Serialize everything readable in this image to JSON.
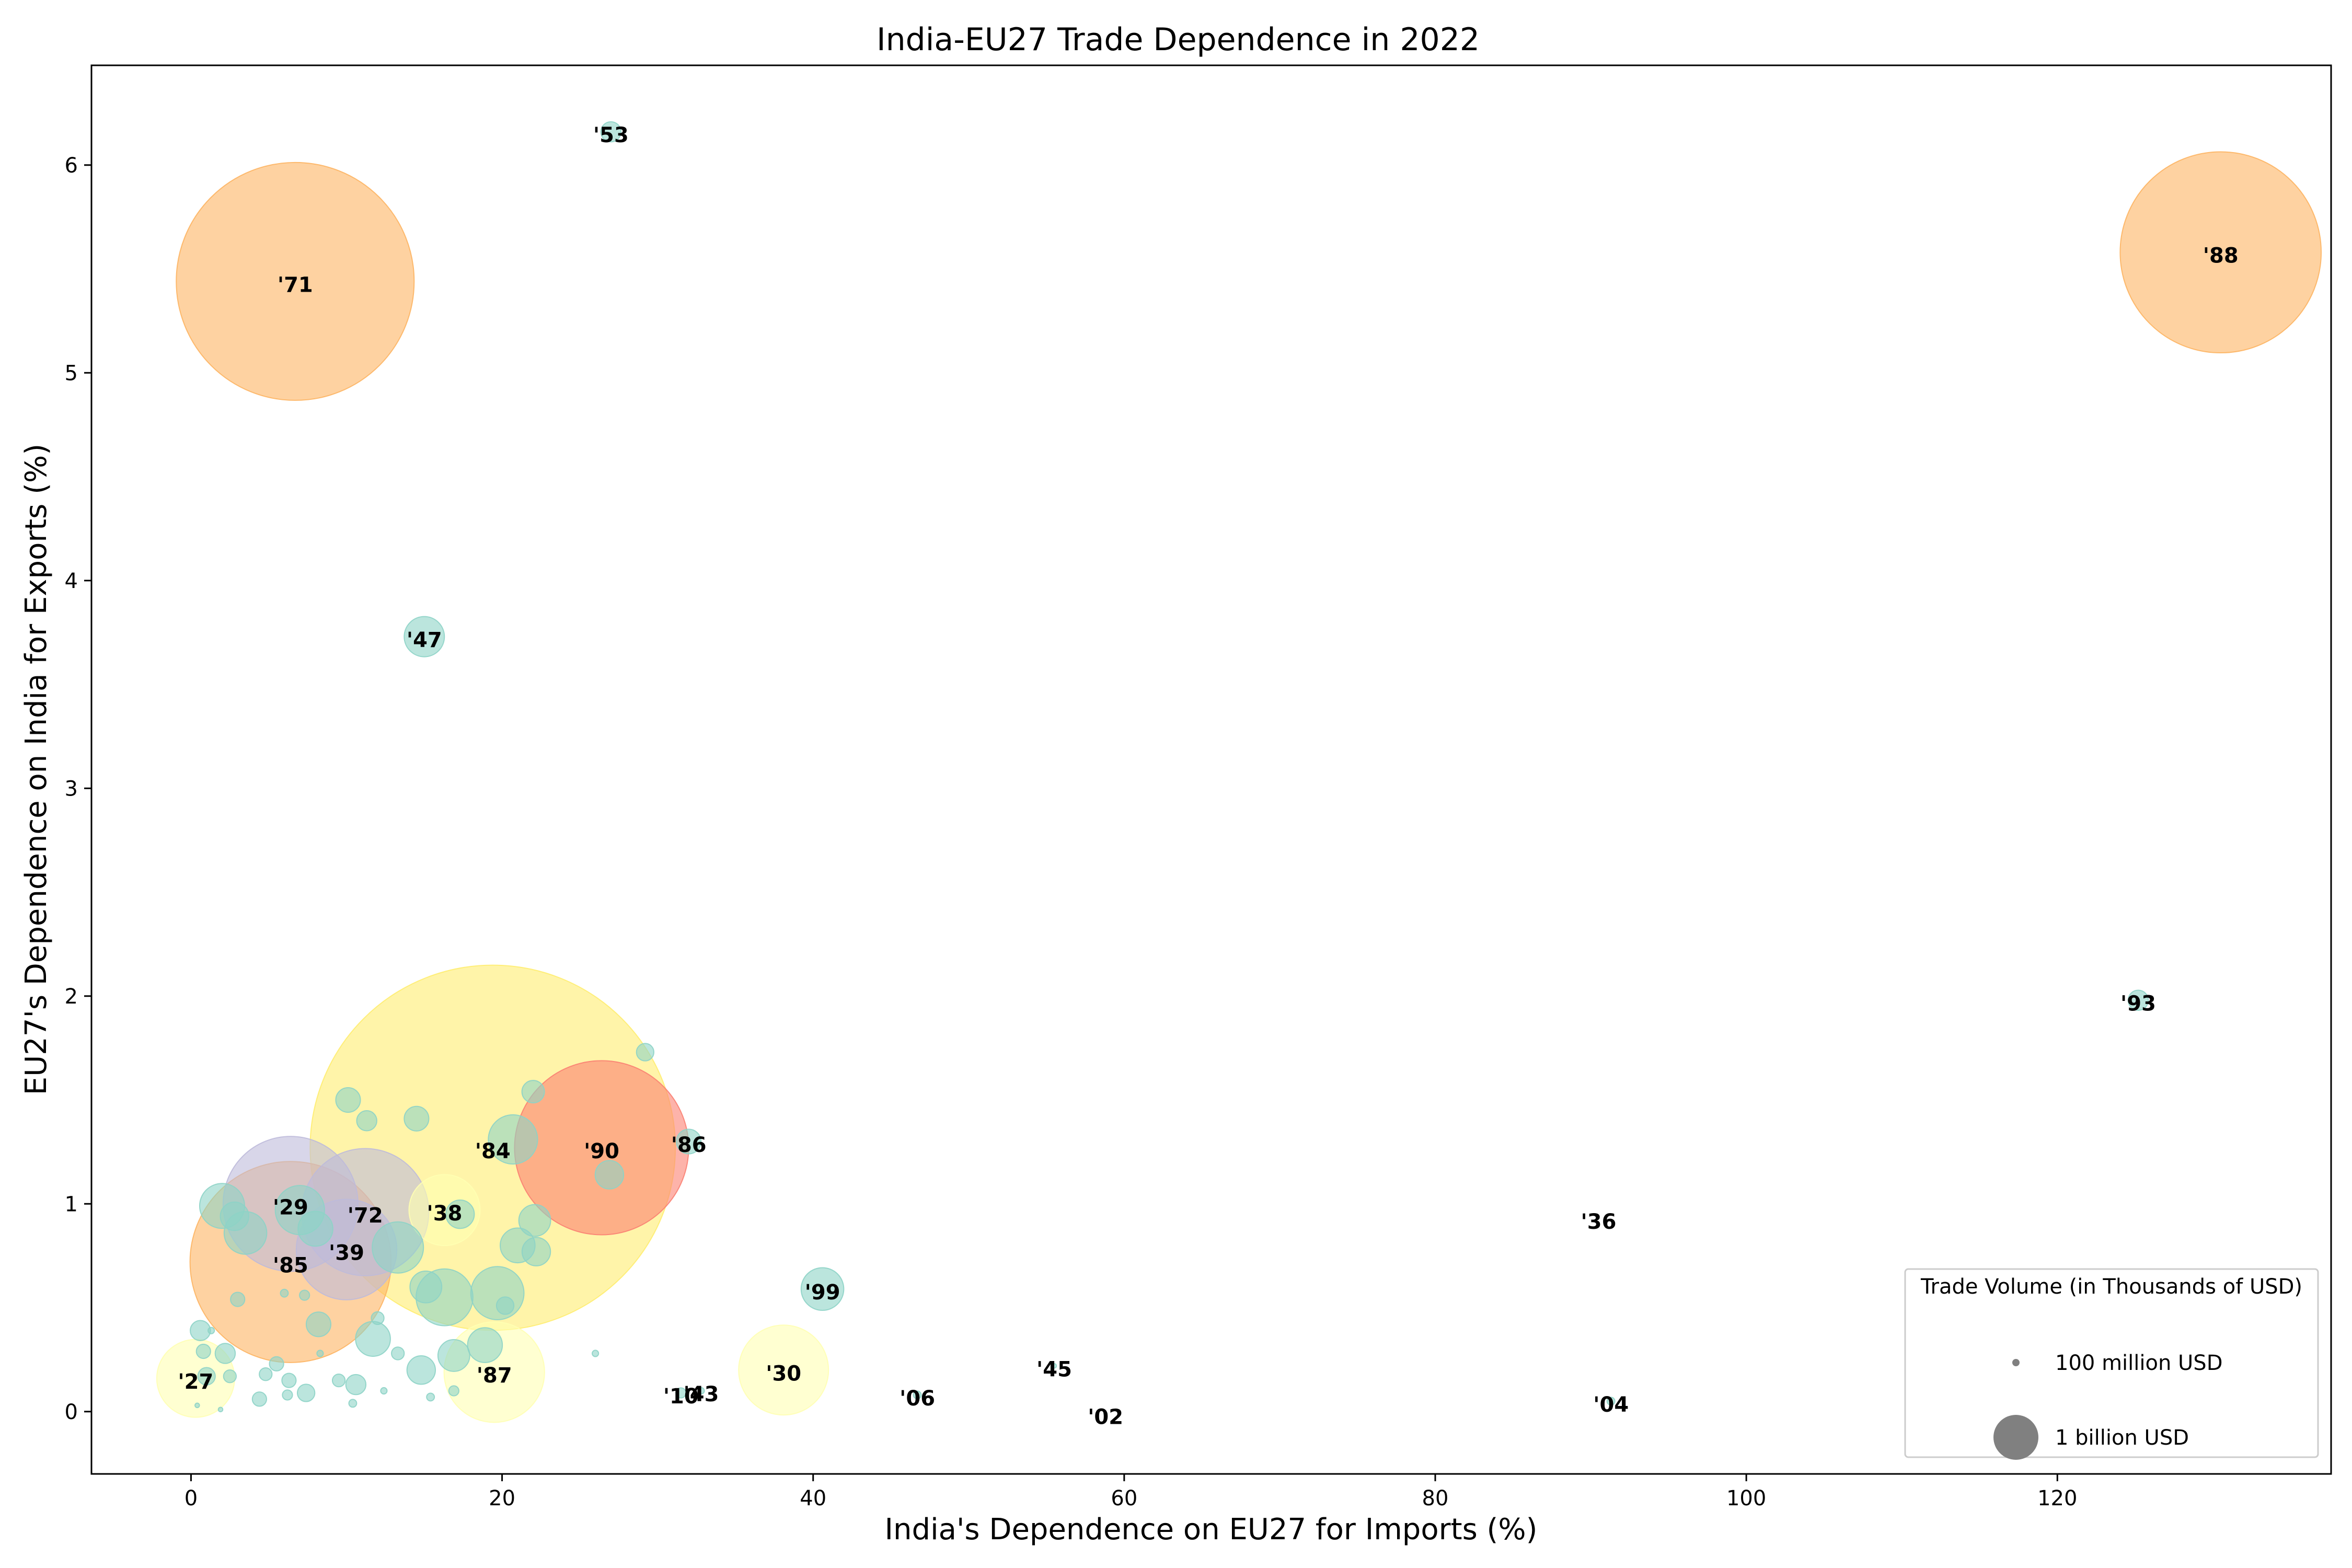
{
  "chart_data": {
    "type": "scatter",
    "title": "India-EU27 Trade Dependence in 2022",
    "xlabel": "India's Dependence on EU27 for Imports (%)",
    "ylabel": "EU27's Dependence on India for Exports (%)",
    "xlim": [
      -6.4,
      137.6
    ],
    "ylim": [
      -0.3,
      6.48
    ],
    "xticks": [
      0,
      20,
      40,
      60,
      80,
      100,
      120
    ],
    "yticks": [
      0,
      1,
      2,
      3,
      4,
      5,
      6
    ],
    "grid": false,
    "legend": {
      "title": "Trade Volume (in Thousands of USD)",
      "placement": "bottom-right",
      "entries": [
        {
          "label": "100 million USD",
          "value_billion_usd": 0.1
        },
        {
          "label": "1 billion USD",
          "value_billion_usd": 1.0
        }
      ]
    },
    "colors": {
      "teal": "#8dd3c7",
      "yellow": "#ffed6f",
      "lightyellow": "#ffffb3",
      "lavender": "#bebada",
      "orange": "#fdb462",
      "salmon": "#fb8072"
    },
    "labeled_points": [
      {
        "label": "'53",
        "x": 27.0,
        "y": 6.16,
        "size_billion_usd": 0.2,
        "color": "teal"
      },
      {
        "label": "'71",
        "x": 6.7,
        "y": 5.44,
        "size_billion_usd": 28,
        "color": "orange"
      },
      {
        "label": "'88",
        "x": 130.5,
        "y": 5.58,
        "size_billion_usd": 20,
        "color": "orange"
      },
      {
        "label": "'47",
        "x": 15.0,
        "y": 3.73,
        "size_billion_usd": 0.8,
        "color": "teal"
      },
      {
        "label": "'93",
        "x": 125.2,
        "y": 1.98,
        "size_billion_usd": 0.2,
        "color": "teal"
      },
      {
        "label": "'84",
        "x": 19.4,
        "y": 1.27,
        "size_billion_usd": 66,
        "color": "yellow"
      },
      {
        "label": "'90",
        "x": 26.4,
        "y": 1.27,
        "size_billion_usd": 15,
        "color": "salmon"
      },
      {
        "label": "'86",
        "x": 32.0,
        "y": 1.3,
        "size_billion_usd": 0.3,
        "color": "teal"
      },
      {
        "label": "'29",
        "x": 6.4,
        "y": 1.0,
        "size_billion_usd": 9,
        "color": "lavender"
      },
      {
        "label": "'72",
        "x": 11.2,
        "y": 0.96,
        "size_billion_usd": 8,
        "color": "lavender"
      },
      {
        "label": "'38",
        "x": 16.3,
        "y": 0.97,
        "size_billion_usd": 2.5,
        "color": "lightyellow"
      },
      {
        "label": "'39",
        "x": 10.0,
        "y": 0.78,
        "size_billion_usd": 5,
        "color": "lavender"
      },
      {
        "label": "'85",
        "x": 6.4,
        "y": 0.72,
        "size_billion_usd": 20,
        "color": "orange"
      },
      {
        "label": "'36",
        "x": 90.5,
        "y": 0.93,
        "size_billion_usd": 0,
        "color": "teal"
      },
      {
        "label": "'99",
        "x": 40.6,
        "y": 0.59,
        "size_billion_usd": 0.9,
        "color": "teal"
      },
      {
        "label": "'87",
        "x": 19.5,
        "y": 0.19,
        "size_billion_usd": 5,
        "color": "lightyellow"
      },
      {
        "label": "'30",
        "x": 38.1,
        "y": 0.2,
        "size_billion_usd": 4,
        "color": "lightyellow"
      },
      {
        "label": "'27",
        "x": 0.3,
        "y": 0.16,
        "size_billion_usd": 3,
        "color": "lightyellow"
      },
      {
        "label": "'45",
        "x": 55.5,
        "y": 0.22,
        "size_billion_usd": 0.01,
        "color": "teal"
      },
      {
        "label": "'43",
        "x": 32.8,
        "y": 0.1,
        "size_billion_usd": 0.02,
        "color": "teal"
      },
      {
        "label": "'10",
        "x": 31.5,
        "y": 0.09,
        "size_billion_usd": 0.05,
        "color": "teal"
      },
      {
        "label": "'06",
        "x": 46.7,
        "y": 0.08,
        "size_billion_usd": 0.03,
        "color": "teal"
      },
      {
        "label": "'02",
        "x": 58.8,
        "y": -0.01,
        "size_billion_usd": 0.005,
        "color": "teal"
      },
      {
        "label": "'04",
        "x": 91.3,
        "y": 0.05,
        "size_billion_usd": 0.03,
        "color": "teal"
      }
    ],
    "unlabeled_points": [
      {
        "x": 2.0,
        "y": 0.99,
        "size_billion_usd": 1.0
      },
      {
        "x": 3.5,
        "y": 0.86,
        "size_billion_usd": 0.9
      },
      {
        "x": 2.8,
        "y": 0.94,
        "size_billion_usd": 0.4
      },
      {
        "x": 7.0,
        "y": 0.97,
        "size_billion_usd": 1.2
      },
      {
        "x": 8.0,
        "y": 0.88,
        "size_billion_usd": 0.6
      },
      {
        "x": 13.3,
        "y": 0.79,
        "size_billion_usd": 1.3
      },
      {
        "x": 16.3,
        "y": 0.55,
        "size_billion_usd": 1.6
      },
      {
        "x": 19.7,
        "y": 0.57,
        "size_billion_usd": 1.4
      },
      {
        "x": 15.1,
        "y": 0.6,
        "size_billion_usd": 0.5
      },
      {
        "x": 11.7,
        "y": 0.35,
        "size_billion_usd": 0.6
      },
      {
        "x": 18.9,
        "y": 0.32,
        "size_billion_usd": 0.6
      },
      {
        "x": 16.9,
        "y": 0.27,
        "size_billion_usd": 0.5
      },
      {
        "x": 14.8,
        "y": 0.2,
        "size_billion_usd": 0.4
      },
      {
        "x": 20.7,
        "y": 1.31,
        "size_billion_usd": 1.2
      },
      {
        "x": 17.3,
        "y": 0.95,
        "size_billion_usd": 0.4
      },
      {
        "x": 22.1,
        "y": 0.92,
        "size_billion_usd": 0.5
      },
      {
        "x": 21.0,
        "y": 0.8,
        "size_billion_usd": 0.6
      },
      {
        "x": 22.2,
        "y": 0.77,
        "size_billion_usd": 0.4
      },
      {
        "x": 26.9,
        "y": 1.14,
        "size_billion_usd": 0.4
      },
      {
        "x": 10.1,
        "y": 1.5,
        "size_billion_usd": 0.3
      },
      {
        "x": 14.5,
        "y": 1.41,
        "size_billion_usd": 0.3
      },
      {
        "x": 11.3,
        "y": 1.4,
        "size_billion_usd": 0.2
      },
      {
        "x": 22.0,
        "y": 1.54,
        "size_billion_usd": 0.25
      },
      {
        "x": 29.2,
        "y": 1.73,
        "size_billion_usd": 0.15
      },
      {
        "x": 8.2,
        "y": 0.42,
        "size_billion_usd": 0.3
      },
      {
        "x": 3.0,
        "y": 0.54,
        "size_billion_usd": 0.1
      },
      {
        "x": 0.6,
        "y": 0.39,
        "size_billion_usd": 0.2
      },
      {
        "x": 0.8,
        "y": 0.29,
        "size_billion_usd": 0.1
      },
      {
        "x": 2.2,
        "y": 0.28,
        "size_billion_usd": 0.2
      },
      {
        "x": 1.0,
        "y": 0.17,
        "size_billion_usd": 0.15
      },
      {
        "x": 2.5,
        "y": 0.17,
        "size_billion_usd": 0.08
      },
      {
        "x": 5.5,
        "y": 0.23,
        "size_billion_usd": 0.1
      },
      {
        "x": 4.8,
        "y": 0.18,
        "size_billion_usd": 0.08
      },
      {
        "x": 6.3,
        "y": 0.15,
        "size_billion_usd": 0.1
      },
      {
        "x": 9.5,
        "y": 0.15,
        "size_billion_usd": 0.08
      },
      {
        "x": 10.6,
        "y": 0.13,
        "size_billion_usd": 0.2
      },
      {
        "x": 7.4,
        "y": 0.09,
        "size_billion_usd": 0.15
      },
      {
        "x": 4.4,
        "y": 0.06,
        "size_billion_usd": 0.1
      },
      {
        "x": 6.2,
        "y": 0.08,
        "size_billion_usd": 0.05
      },
      {
        "x": 12.0,
        "y": 0.45,
        "size_billion_usd": 0.08
      },
      {
        "x": 13.3,
        "y": 0.28,
        "size_billion_usd": 0.08
      },
      {
        "x": 20.2,
        "y": 0.51,
        "size_billion_usd": 0.15
      },
      {
        "x": 7.3,
        "y": 0.56,
        "size_billion_usd": 0.05
      },
      {
        "x": 6.0,
        "y": 0.57,
        "size_billion_usd": 0.03
      },
      {
        "x": 16.9,
        "y": 0.1,
        "size_billion_usd": 0.05
      },
      {
        "x": 15.4,
        "y": 0.07,
        "size_billion_usd": 0.03
      },
      {
        "x": 10.4,
        "y": 0.04,
        "size_billion_usd": 0.03
      },
      {
        "x": 26.0,
        "y": 0.28,
        "size_billion_usd": 0.02
      },
      {
        "x": 1.9,
        "y": 0.01,
        "size_billion_usd": 0.01
      },
      {
        "x": 0.4,
        "y": 0.03,
        "size_billion_usd": 0.01
      },
      {
        "x": 12.4,
        "y": 0.1,
        "size_billion_usd": 0.02
      },
      {
        "x": 8.3,
        "y": 0.28,
        "size_billion_usd": 0.02
      },
      {
        "x": 1.3,
        "y": 0.39,
        "size_billion_usd": 0.02
      }
    ]
  }
}
